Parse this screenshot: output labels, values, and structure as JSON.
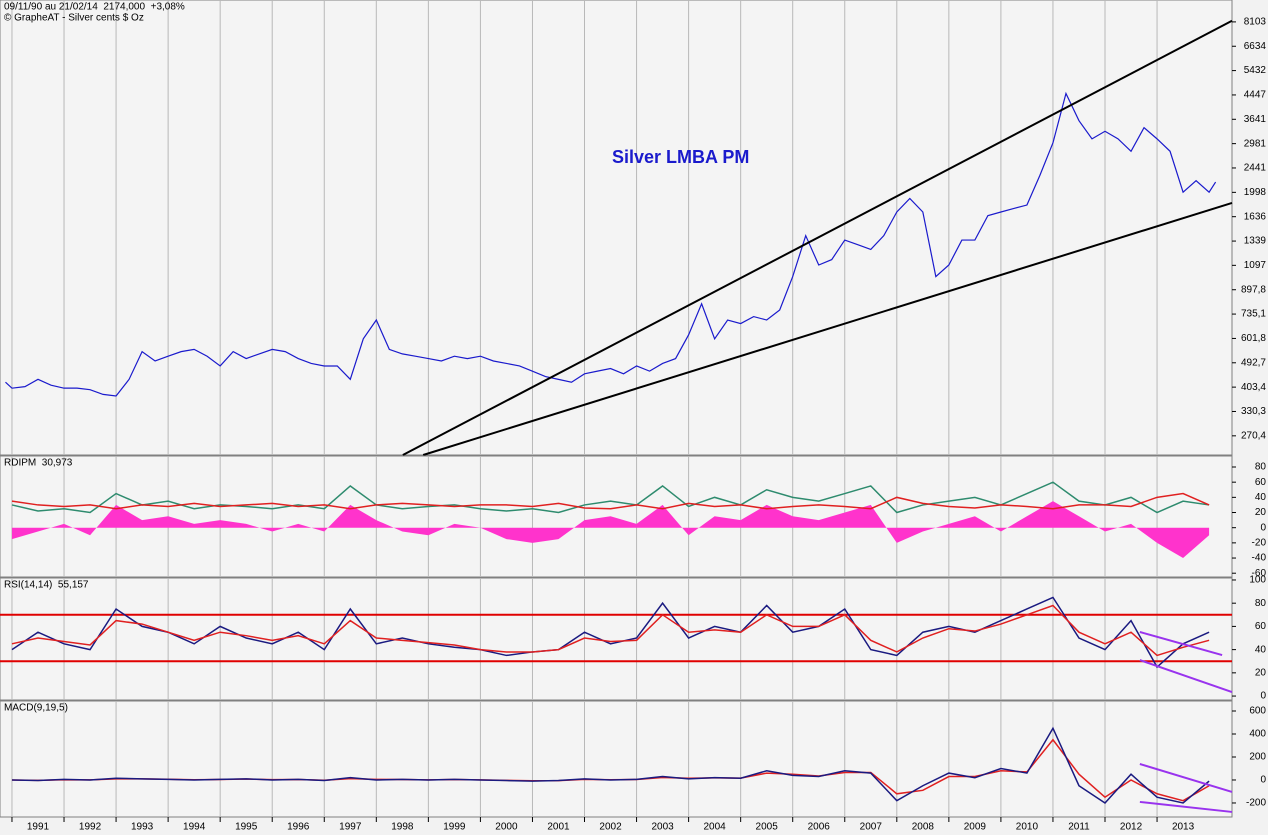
{
  "chart_data": [
    {
      "type": "line",
      "log": true,
      "title": "09/11/90 au 21/02/14  2174,000  +3,08%",
      "subtitle": "© GrapheAT - Silver cents $ Oz",
      "annotation": "Silver LMBA PM",
      "ylim": [
        231,
        9700
      ],
      "yticks": [
        {
          "value": 8103,
          "label": "8103"
        },
        6634,
        5432,
        4447,
        3641,
        2981,
        2441,
        1998,
        1636,
        1339,
        1097,
        {
          "value": 897.8,
          "label": "897,8"
        },
        {
          "value": 735.1,
          "label": "735,1"
        },
        {
          "value": 601.8,
          "label": "601,8"
        },
        {
          "value": 492.7,
          "label": "492,7"
        },
        {
          "value": 403.4,
          "label": "403,4"
        },
        {
          "value": 330.3,
          "label": "330,3"
        },
        {
          "value": 270.4,
          "label": "270,4"
        }
      ],
      "x": [
        1990.875,
        1991,
        1991.25,
        1991.5,
        1991.75,
        1992,
        1992.25,
        1992.5,
        1992.75,
        1993,
        1993.25,
        1993.5,
        1993.75,
        1994,
        1994.25,
        1994.5,
        1994.75,
        1995,
        1995.25,
        1995.5,
        1995.75,
        1996,
        1996.25,
        1996.5,
        1996.75,
        1997,
        1997.25,
        1997.5,
        1997.75,
        1998,
        1998.25,
        1998.5,
        1998.75,
        1999,
        1999.25,
        1999.5,
        1999.75,
        2000,
        2000.25,
        2000.5,
        2000.75,
        2001,
        2001.25,
        2001.5,
        2001.75,
        2002,
        2002.25,
        2002.5,
        2002.75,
        2003,
        2003.25,
        2003.5,
        2003.75,
        2004,
        2004.25,
        2004.5,
        2004.75,
        2005,
        2005.25,
        2005.5,
        2005.75,
        2006,
        2006.25,
        2006.5,
        2006.75,
        2007,
        2007.25,
        2007.5,
        2007.75,
        2008,
        2008.25,
        2008.5,
        2008.75,
        2009,
        2009.25,
        2009.5,
        2009.75,
        2010,
        2010.25,
        2010.5,
        2010.75,
        2011,
        2011.25,
        2011.5,
        2011.75,
        2012,
        2012.25,
        2012.5,
        2012.75,
        2013,
        2013.25,
        2013.5,
        2013.75,
        2014,
        2014.125
      ],
      "series": [
        {
          "color": "#1a1acc",
          "values": [
            420,
            400,
            405,
            430,
            410,
            400,
            400,
            395,
            380,
            375,
            430,
            540,
            500,
            520,
            540,
            550,
            520,
            480,
            540,
            510,
            530,
            550,
            540,
            510,
            490,
            480,
            480,
            430,
            600,
            700,
            550,
            530,
            520,
            510,
            500,
            520,
            510,
            520,
            500,
            490,
            480,
            460,
            440,
            430,
            420,
            450,
            460,
            470,
            450,
            480,
            460,
            490,
            510,
            620,
            800,
            600,
            700,
            680,
            720,
            700,
            760,
            1000,
            1400,
            1100,
            1150,
            1350,
            1300,
            1250,
            1400,
            1700,
            1900,
            1700,
            1000,
            1100,
            1350,
            1350,
            1650,
            1700,
            1750,
            1800,
            2300,
            3000,
            4500,
            3600,
            3100,
            3300,
            3100,
            2800,
            3400,
            3100,
            2800,
            2000,
            2200,
            2000,
            2174
          ]
        }
      ],
      "trendlines": [
        {
          "color": "#000000",
          "x": [
            1998.51,
            2014.44
          ],
          "y": [
            231,
            8180
          ]
        },
        {
          "color": "#000000",
          "x": [
            1998.9,
            2014.44
          ],
          "y": [
            231,
            1832
          ]
        }
      ]
    },
    {
      "type": "line",
      "title": "RDIPM  30,973",
      "ylim": [
        -65,
        94.5
      ],
      "yticks": [
        -60,
        -40,
        -20,
        0,
        20,
        40,
        60,
        80
      ],
      "x": [
        1991,
        1991.5,
        1992,
        1992.5,
        1993,
        1993.5,
        1994,
        1994.5,
        1995,
        1995.5,
        1996,
        1996.5,
        1997,
        1997.5,
        1998,
        1998.5,
        1999,
        1999.5,
        2000,
        2000.5,
        2001,
        2001.5,
        2002,
        2002.5,
        2003,
        2003.5,
        2004,
        2004.5,
        2005,
        2005.5,
        2006,
        2006.5,
        2007,
        2007.5,
        2008,
        2008.5,
        2009,
        2009.5,
        2010,
        2010.5,
        2011,
        2011.5,
        2012,
        2012.5,
        2013,
        2013.5,
        2014
      ],
      "series": [
        {
          "color": "#ff33cc",
          "style": "area",
          "values": [
            -15,
            -5,
            5,
            -10,
            30,
            10,
            15,
            5,
            10,
            5,
            -5,
            5,
            -5,
            30,
            10,
            -5,
            -10,
            5,
            0,
            -15,
            -20,
            -15,
            10,
            15,
            5,
            30,
            -10,
            15,
            10,
            30,
            15,
            10,
            20,
            30,
            -20,
            -5,
            5,
            15,
            -5,
            15,
            35,
            15,
            -5,
            5,
            -20,
            -40,
            -10
          ]
        },
        {
          "color": "#2e8b6e",
          "values": [
            30,
            22,
            25,
            20,
            45,
            30,
            35,
            25,
            30,
            28,
            25,
            30,
            25,
            55,
            30,
            25,
            28,
            30,
            25,
            22,
            25,
            20,
            30,
            35,
            30,
            55,
            28,
            40,
            30,
            50,
            40,
            35,
            45,
            55,
            20,
            30,
            35,
            40,
            30,
            45,
            60,
            35,
            30,
            40,
            20,
            35,
            30
          ]
        },
        {
          "color": "#e02020",
          "values": [
            35,
            30,
            28,
            30,
            25,
            30,
            28,
            32,
            28,
            30,
            32,
            28,
            30,
            25,
            30,
            32,
            30,
            28,
            30,
            30,
            28,
            32,
            26,
            25,
            30,
            25,
            32,
            28,
            30,
            25,
            28,
            30,
            28,
            25,
            40,
            32,
            28,
            26,
            30,
            28,
            25,
            30,
            30,
            28,
            40,
            45,
            30
          ]
        }
      ]
    },
    {
      "type": "line",
      "title": "RSI(14,14)  55,157",
      "ylim": [
        -3.4,
        101.7
      ],
      "yticks": [
        0,
        20,
        40,
        60,
        80,
        100
      ],
      "levels": [
        30,
        70
      ],
      "level_color": "#e00000",
      "x": [
        1991,
        1991.5,
        1992,
        1992.5,
        1993,
        1993.5,
        1994,
        1994.5,
        1995,
        1995.5,
        1996,
        1996.5,
        1997,
        1997.5,
        1998,
        1998.5,
        1999,
        1999.5,
        2000,
        2000.5,
        2001,
        2001.5,
        2002,
        2002.5,
        2003,
        2003.5,
        2004,
        2004.5,
        2005,
        2005.5,
        2006,
        2006.5,
        2007,
        2007.5,
        2008,
        2008.5,
        2009,
        2009.5,
        2010,
        2010.5,
        2011,
        2011.5,
        2012,
        2012.5,
        2013,
        2013.5,
        2014
      ],
      "series": [
        {
          "color": "#1a1a80",
          "values": [
            40,
            55,
            45,
            40,
            75,
            60,
            55,
            45,
            60,
            50,
            45,
            55,
            40,
            75,
            45,
            50,
            45,
            42,
            40,
            35,
            38,
            40,
            55,
            45,
            50,
            80,
            50,
            60,
            55,
            78,
            55,
            60,
            75,
            40,
            35,
            55,
            60,
            55,
            65,
            75,
            85,
            50,
            40,
            65,
            25,
            45,
            55
          ]
        },
        {
          "color": "#e02020",
          "values": [
            45,
            50,
            47,
            44,
            65,
            62,
            55,
            48,
            55,
            52,
            48,
            52,
            45,
            65,
            50,
            48,
            46,
            44,
            40,
            38,
            38,
            40,
            50,
            47,
            48,
            70,
            55,
            57,
            55,
            70,
            60,
            60,
            70,
            48,
            38,
            50,
            58,
            56,
            62,
            70,
            78,
            55,
            45,
            55,
            35,
            42,
            48
          ]
        }
      ],
      "trendlines": [
        {
          "color": "#9933ee",
          "x": [
            2012.67,
            2014.25
          ],
          "y": [
            55.2,
            35.3
          ]
        },
        {
          "color": "#9933ee",
          "x": [
            2012.67,
            2014.44
          ],
          "y": [
            31,
            3.4
          ]
        }
      ]
    },
    {
      "type": "line",
      "title": "MACD(9,19,5)",
      "ylim": [
        -322,
        687
      ],
      "yticks": [
        -200,
        0,
        200,
        400,
        600
      ],
      "xlim": [
        1990.77,
        2014.44
      ],
      "xticks": [
        1991,
        1992,
        1993,
        1994,
        1995,
        1996,
        1997,
        1998,
        1999,
        2000,
        2001,
        2002,
        2003,
        2004,
        2005,
        2006,
        2007,
        2008,
        2009,
        2010,
        2011,
        2012,
        2013
      ],
      "x": [
        1991,
        1991.5,
        1992,
        1992.5,
        1993,
        1993.5,
        1994,
        1994.5,
        1995,
        1995.5,
        1996,
        1996.5,
        1997,
        1997.5,
        1998,
        1998.5,
        1999,
        1999.5,
        2000,
        2000.5,
        2001,
        2001.5,
        2002,
        2002.5,
        2003,
        2003.5,
        2004,
        2004.5,
        2005,
        2005.5,
        2006,
        2006.5,
        2007,
        2007.5,
        2008,
        2008.5,
        2009,
        2009.5,
        2010,
        2010.5,
        2011,
        2011.5,
        2012,
        2012.5,
        2013,
        2013.5,
        2014
      ],
      "series": [
        {
          "color": "#e02020",
          "values": [
            0,
            -3,
            2,
            1,
            10,
            10,
            6,
            2,
            4,
            8,
            3,
            4,
            -2,
            12,
            5,
            4,
            1,
            4,
            1,
            -3,
            -7,
            -6,
            5,
            2,
            4,
            22,
            15,
            18,
            16,
            60,
            50,
            35,
            65,
            65,
            -120,
            -90,
            30,
            30,
            80,
            70,
            350,
            50,
            -150,
            0,
            -120,
            -180,
            -50
          ]
        },
        {
          "color": "#1a1a80",
          "values": [
            0,
            -5,
            5,
            0,
            15,
            10,
            5,
            0,
            5,
            10,
            0,
            5,
            -5,
            20,
            0,
            5,
            0,
            5,
            0,
            -5,
            -10,
            -5,
            10,
            0,
            5,
            30,
            10,
            20,
            15,
            80,
            40,
            30,
            80,
            60,
            -180,
            -50,
            60,
            20,
            100,
            60,
            450,
            -50,
            -200,
            50,
            -150,
            -200,
            -10
          ]
        }
      ],
      "trendlines": [
        {
          "color": "#9933ee",
          "x": [
            2012.67,
            2014.44
          ],
          "y": [
            139,
            -104
          ]
        },
        {
          "color": "#9933ee",
          "x": [
            2012.67,
            2014.44
          ],
          "y": [
            -191,
            -278
          ]
        }
      ]
    }
  ]
}
